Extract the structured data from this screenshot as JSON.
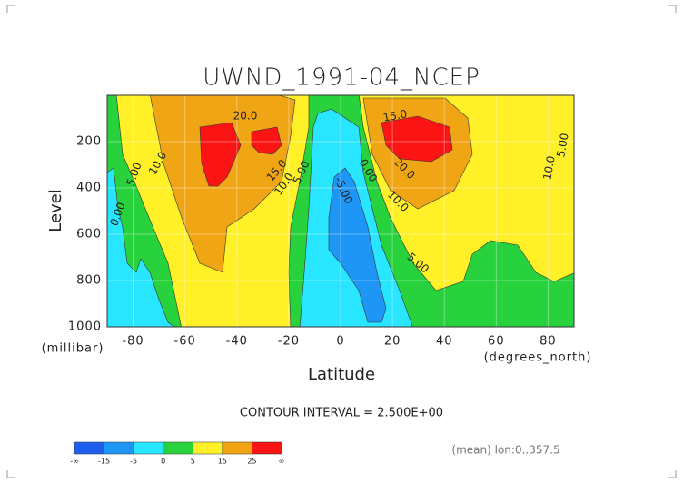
{
  "chart_data": {
    "type": "contour",
    "title": "UWND_1991-04_NCEP",
    "y_label": "Level",
    "y_unit": "(millibar)",
    "x_label": "Latitude",
    "x_unit": "(degrees_north)",
    "xlim": [
      -90,
      90
    ],
    "xticks": [
      -80,
      -60,
      -40,
      -20,
      0,
      20,
      40,
      60,
      80
    ],
    "ylim": [
      1000,
      0
    ],
    "yticks": [
      200,
      400,
      600,
      800,
      1000
    ],
    "contour_labels": [
      "20.0",
      "15.0",
      "10.0",
      "5.00",
      "0.00",
      "10.0",
      "5.00",
      "-5.00",
      "0.00",
      "15.0",
      "20.0",
      "10.0",
      "5.00",
      "10.0",
      "5.00"
    ],
    "footer": "CONTOUR INTERVAL = 2.500E+00",
    "note": "(mean) lon:0..357.5",
    "colorbar": {
      "labels": [
        "-∞",
        -15,
        -5,
        0,
        5,
        15,
        25,
        "∞"
      ],
      "colors": [
        "#1e5ff0",
        "#1e96f5",
        "#28e6ff",
        "#28d23c",
        "#fff028",
        "#f0a514",
        "#fa1414"
      ]
    }
  }
}
